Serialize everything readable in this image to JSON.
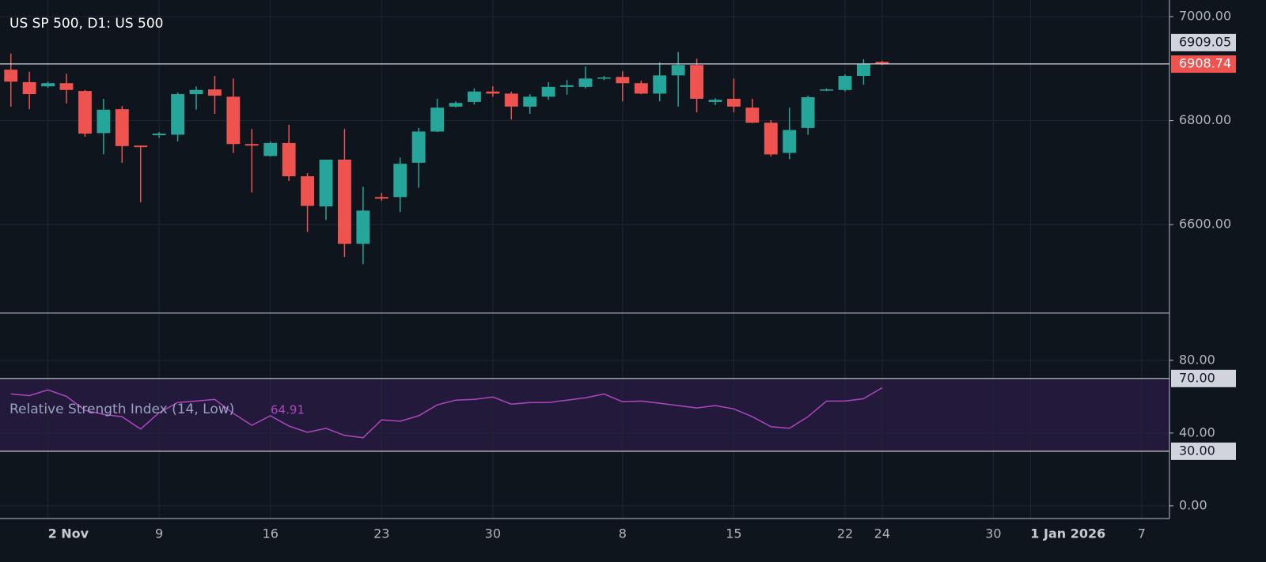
{
  "chart_data": [
    {
      "type": "candlestick",
      "title": "US SP 500, D1: US 500",
      "categories": [
        null,
        null,
        "2 Nov",
        null,
        null,
        null,
        null,
        null,
        "9",
        null,
        null,
        null,
        null,
        null,
        "16",
        null,
        null,
        null,
        null,
        null,
        "23",
        null,
        null,
        null,
        null,
        null,
        "30",
        null,
        null,
        null,
        null,
        null,
        null,
        "8",
        null,
        null,
        null,
        null,
        null,
        "15",
        null,
        null,
        null,
        null,
        null,
        "22",
        null,
        "24",
        null,
        null,
        null,
        null,
        null,
        "30",
        null,
        "1 Jan 2026",
        null,
        null,
        null,
        null,
        null,
        "7",
        null
      ],
      "open": [
        6898,
        6874,
        6866,
        6872,
        6857,
        6776,
        6822,
        6752,
        6772,
        6773,
        6851,
        6860,
        6846,
        6755,
        6732,
        6757,
        6693,
        6635,
        6725,
        6563,
        6653,
        6653,
        6719,
        6779,
        6827,
        6836,
        6856,
        6852,
        6827,
        6846,
        6865,
        6865,
        6881,
        6884,
        6872,
        6852,
        6887,
        6907,
        6836,
        6842,
        6825,
        6796,
        6738,
        6786,
        6858,
        6859,
        6886,
        6913,
        null,
        null,
        null,
        null,
        null,
        null,
        null,
        null,
        null,
        null,
        null,
        null,
        null,
        null,
        null
      ],
      "high": [
        6929,
        6894,
        6875,
        6890,
        6859,
        6842,
        6828,
        6752,
        6778,
        6854,
        6866,
        6886,
        6881,
        6784,
        6760,
        6792,
        6699,
        6725,
        6784,
        6673,
        6661,
        6729,
        6786,
        6842,
        6837,
        6862,
        6866,
        6856,
        6851,
        6874,
        6878,
        6904,
        6886,
        6895,
        6877,
        6912,
        6932,
        6919,
        6843,
        6881,
        6842,
        6801,
        6825,
        6848,
        6862,
        6889,
        6918,
        6915,
        null,
        null,
        null,
        null,
        null,
        null,
        null,
        null,
        null,
        null,
        null,
        null,
        null,
        null,
        null
      ],
      "low": [
        6827,
        6822,
        6863,
        6833,
        6769,
        6735,
        6719,
        6643,
        6767,
        6760,
        6821,
        6813,
        6738,
        6662,
        6731,
        6684,
        6586,
        6609,
        6538,
        6524,
        6646,
        6624,
        6671,
        6778,
        6825,
        6831,
        6846,
        6802,
        6813,
        6840,
        6850,
        6862,
        6878,
        6837,
        6851,
        6837,
        6827,
        6816,
        6830,
        6816,
        6795,
        6731,
        6726,
        6773,
        6857,
        6856,
        6869,
        6907,
        null,
        null,
        null,
        null,
        null,
        null,
        null,
        null,
        null,
        null,
        null,
        null,
        null,
        null,
        null
      ],
      "close": [
        6875,
        6851,
        6872,
        6859,
        6775,
        6821,
        6751,
        6749,
        6775,
        6851,
        6859,
        6848,
        6755,
        6752,
        6757,
        6693,
        6636,
        6725,
        6563,
        6627,
        6650,
        6717,
        6779,
        6825,
        6834,
        6856,
        6852,
        6827,
        6846,
        6865,
        6868,
        6881,
        6883,
        6872,
        6852,
        6887,
        6907,
        6842,
        6840,
        6827,
        6796,
        6735,
        6782,
        6845,
        6860,
        6886,
        6909,
        6908.74,
        null,
        null,
        null,
        null,
        null,
        null,
        null,
        null,
        null,
        null,
        null,
        null,
        null,
        null,
        null
      ],
      "up_color": "#26a69a",
      "down_color": "#ef5350",
      "ylim": [
        6430,
        7032
      ],
      "yticks": [
        {
          "value": 7000,
          "label": "7000.00"
        },
        {
          "value": 6800,
          "label": "6800.00"
        },
        {
          "value": 6600,
          "label": "6600.00"
        }
      ],
      "grid": true,
      "price_lines": [
        {
          "value": 6909.05,
          "label": "6909.05",
          "color": "#d1d4dc"
        },
        {
          "value": 6908.74,
          "label": "6908.74",
          "color": "#ef5350"
        }
      ]
    },
    {
      "type": "line",
      "name": "Relative Strength Index (14, Low)",
      "color": "#ab47bc",
      "values": [
        61.5,
        60.6,
        63.7,
        60.2,
        52.5,
        50.3,
        49.0,
        42.2,
        51.2,
        56.8,
        57.6,
        58.5,
        50.8,
        44.3,
        49.5,
        43.9,
        40.4,
        42.6,
        38.7,
        37.4,
        47.3,
        46.5,
        49.5,
        55.5,
        58.1,
        58.5,
        59.8,
        55.9,
        56.8,
        56.8,
        58.1,
        59.4,
        61.5,
        57.2,
        57.6,
        56.4,
        55.1,
        53.8,
        55.1,
        53.3,
        49.0,
        43.5,
        42.6,
        49.0,
        57.6,
        57.6,
        58.9,
        64.91,
        null,
        null,
        null,
        null,
        null,
        null,
        null,
        null,
        null,
        null,
        null,
        null,
        null,
        null,
        null
      ],
      "ylim": [
        -7,
        106
      ],
      "yticks": [
        {
          "value": 80,
          "label": "80.00"
        },
        {
          "value": 40,
          "label": "40.00"
        },
        {
          "value": 0,
          "label": "0.00"
        }
      ],
      "levels": [
        {
          "value": 70,
          "label": "70.00"
        },
        {
          "value": 30,
          "label": "30.00"
        }
      ],
      "band_color": "#231a3b"
    }
  ]
}
